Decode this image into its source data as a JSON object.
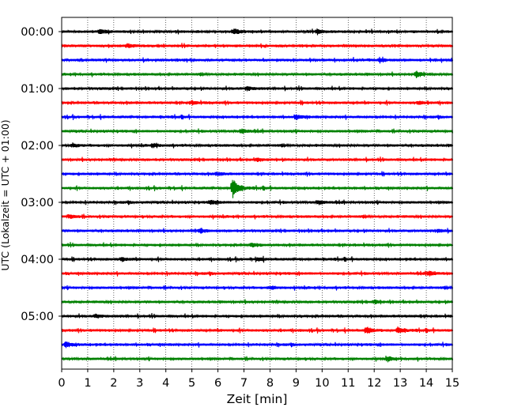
{
  "chart_data": {
    "type": "line",
    "title": "",
    "xlabel": "Zeit  [min]",
    "ylabel": "UTC (Lokalzeit = UTC + 01:00)",
    "xlim": [
      0,
      15
    ],
    "x_ticks": [
      "0",
      "1",
      "2",
      "3",
      "4",
      "5",
      "6",
      "7",
      "8",
      "9",
      "10",
      "11",
      "12",
      "13",
      "14",
      "15"
    ],
    "y_ticks": [
      "00:00",
      "01:00",
      "02:00",
      "03:00",
      "04:00",
      "05:00"
    ],
    "grid": "vertical-dotted",
    "trace_interval_minutes": 15,
    "trace_count": 24,
    "trace_colors": [
      "#000000",
      "#ff0000",
      "#0000ff",
      "#008000"
    ],
    "traces": [
      {
        "start": "00:00",
        "color": "#000000",
        "events": [
          {
            "x": 1.45,
            "amp": 0.7
          },
          {
            "x": 6.6,
            "amp": 0.9
          },
          {
            "x": 9.8,
            "amp": 0.7
          }
        ]
      },
      {
        "start": "00:15",
        "color": "#ff0000",
        "events": [
          {
            "x": 2.5,
            "amp": 0.6
          }
        ]
      },
      {
        "start": "00:30",
        "color": "#0000ff",
        "events": [
          {
            "x": 12.2,
            "amp": 0.5
          }
        ]
      },
      {
        "start": "00:45",
        "color": "#008000",
        "events": [
          {
            "x": 13.6,
            "amp": 0.9
          }
        ]
      },
      {
        "start": "01:00",
        "color": "#000000",
        "events": [
          {
            "x": 7.1,
            "amp": 0.6
          }
        ]
      },
      {
        "start": "01:15",
        "color": "#ff0000",
        "events": [
          {
            "x": 4.95,
            "amp": 0.55
          },
          {
            "x": 13.7,
            "amp": 0.5
          }
        ]
      },
      {
        "start": "01:30",
        "color": "#0000ff",
        "events": [
          {
            "x": 9.0,
            "amp": 0.7
          }
        ]
      },
      {
        "start": "01:45",
        "color": "#008000",
        "events": [
          {
            "x": 6.9,
            "amp": 0.6
          }
        ]
      },
      {
        "start": "02:00",
        "color": "#000000",
        "events": [
          {
            "x": 0.4,
            "amp": 0.55
          },
          {
            "x": 3.5,
            "amp": 0.6
          }
        ]
      },
      {
        "start": "02:15",
        "color": "#ff0000",
        "events": [
          {
            "x": 7.5,
            "amp": 0.4
          }
        ]
      },
      {
        "start": "02:30",
        "color": "#0000ff",
        "events": [
          {
            "x": 5.95,
            "amp": 0.5
          }
        ]
      },
      {
        "start": "02:45",
        "color": "#008000",
        "events": [
          {
            "x": 6.55,
            "amp": 3.0
          }
        ]
      },
      {
        "start": "03:00",
        "color": "#000000",
        "events": [
          {
            "x": 5.7,
            "amp": 0.6
          },
          {
            "x": 9.85,
            "amp": 0.5
          }
        ]
      },
      {
        "start": "03:15",
        "color": "#ff0000",
        "events": [
          {
            "x": 0.3,
            "amp": 0.5
          }
        ]
      },
      {
        "start": "03:30",
        "color": "#0000ff",
        "events": [
          {
            "x": 5.3,
            "amp": 0.7
          },
          {
            "x": 14.4,
            "amp": 0.5
          }
        ]
      },
      {
        "start": "03:45",
        "color": "#008000",
        "events": [
          {
            "x": 7.3,
            "amp": 0.6
          }
        ]
      },
      {
        "start": "04:00",
        "color": "#000000",
        "events": [
          {
            "x": 2.3,
            "amp": 0.55
          },
          {
            "x": 7.5,
            "amp": 0.5
          }
        ]
      },
      {
        "start": "04:15",
        "color": "#ff0000",
        "events": [
          {
            "x": 14.1,
            "amp": 0.7
          }
        ]
      },
      {
        "start": "04:30",
        "color": "#0000ff",
        "events": [
          {
            "x": 8.0,
            "amp": 0.45
          }
        ]
      },
      {
        "start": "04:45",
        "color": "#008000",
        "events": [
          {
            "x": 12.0,
            "amp": 0.5
          }
        ]
      },
      {
        "start": "05:00",
        "color": "#000000",
        "events": [
          {
            "x": 1.3,
            "amp": 0.5
          }
        ]
      },
      {
        "start": "05:15",
        "color": "#ff0000",
        "events": [
          {
            "x": 11.7,
            "amp": 1.0
          },
          {
            "x": 12.9,
            "amp": 0.8
          }
        ]
      },
      {
        "start": "05:30",
        "color": "#0000ff",
        "events": [
          {
            "x": 0.15,
            "amp": 0.9
          }
        ]
      },
      {
        "start": "05:45",
        "color": "#008000",
        "events": [
          {
            "x": 12.5,
            "amp": 0.6
          }
        ]
      }
    ]
  }
}
